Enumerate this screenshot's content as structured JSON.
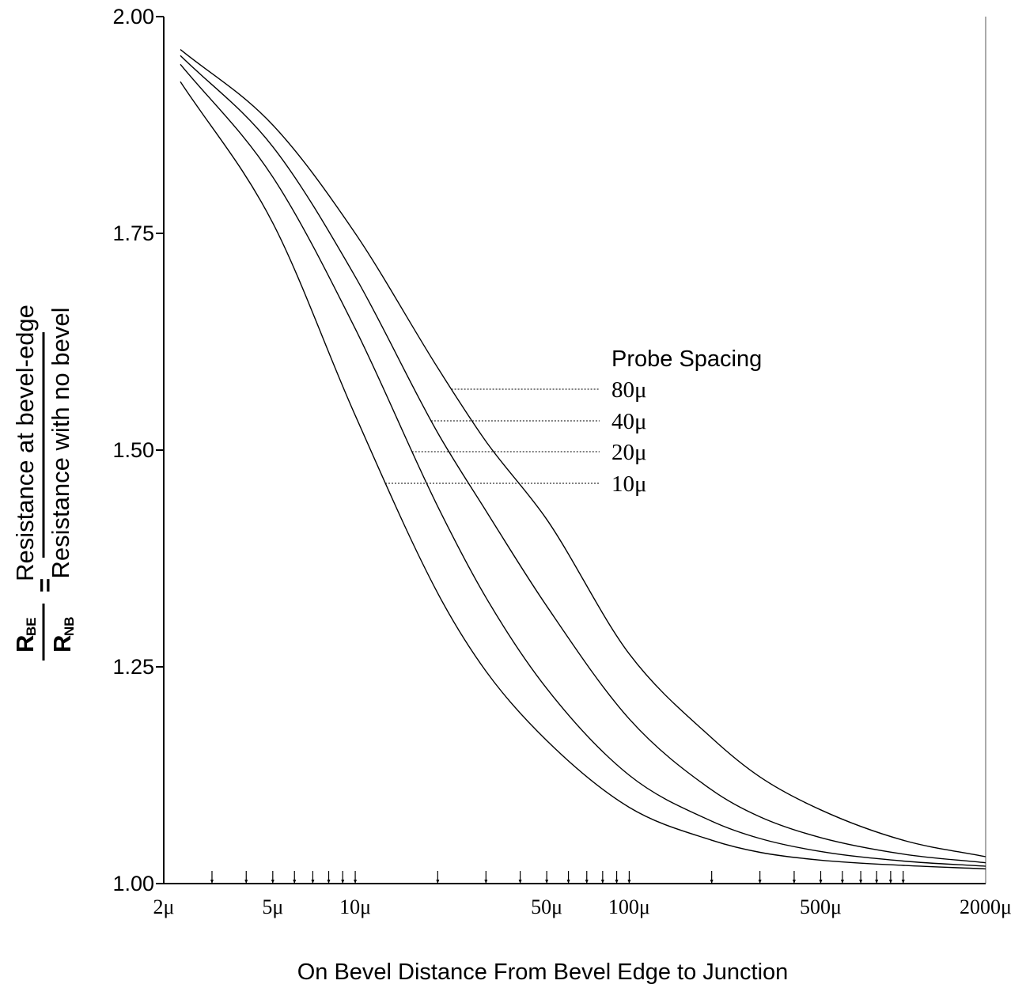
{
  "chart_data": {
    "type": "line",
    "title": "",
    "xlabel": "On Bevel Distance From Bevel Edge to Junction",
    "ylabel": {
      "numerator": "Resistance at bevel-edge",
      "denominator": "Resistance with no bevel",
      "symbol_numerator": "R",
      "symbol_numerator_sub": "BE",
      "symbol_denominator": "R",
      "symbol_denominator_sub": "NB",
      "equals": "="
    },
    "x_scale": "log",
    "x_unit": "μ",
    "xlim": [
      2,
      2000
    ],
    "ylim": [
      1.0,
      2.0
    ],
    "y_ticks": [
      "1.00",
      "1.25",
      "1.50",
      "1.75",
      "2.00"
    ],
    "x_tick_labels": [
      {
        "value": 2,
        "label": "2μ"
      },
      {
        "value": 5,
        "label": "5μ"
      },
      {
        "value": 10,
        "label": "10μ"
      },
      {
        "value": 50,
        "label": "50μ"
      },
      {
        "value": 100,
        "label": "100μ"
      },
      {
        "value": 500,
        "label": "500μ"
      },
      {
        "value": 2000,
        "label": "2000μ"
      }
    ],
    "x_minor_ticks": [
      3,
      4,
      5,
      6,
      7,
      8,
      9,
      10,
      20,
      30,
      40,
      50,
      60,
      70,
      80,
      90,
      100,
      200,
      300,
      400,
      500,
      600,
      700,
      800,
      900,
      1000
    ],
    "grid": false,
    "legend": {
      "title": "Probe Spacing",
      "placement": "center-right",
      "entries": [
        "80μ",
        "40μ",
        "20μ",
        "10μ"
      ]
    },
    "series": [
      {
        "name": "80μ",
        "x": [
          2.3,
          5,
          10,
          20,
          30,
          50,
          100,
          200,
          300,
          500,
          1000,
          2000
        ],
        "y": [
          1.962,
          1.875,
          1.75,
          1.595,
          1.51,
          1.42,
          1.265,
          1.168,
          1.123,
          1.085,
          1.05,
          1.031
        ]
      },
      {
        "name": "40μ",
        "x": [
          2.3,
          5,
          10,
          20,
          30,
          50,
          100,
          200,
          300,
          500,
          1000,
          2000
        ],
        "y": [
          1.955,
          1.85,
          1.7,
          1.52,
          1.43,
          1.32,
          1.19,
          1.108,
          1.077,
          1.053,
          1.034,
          1.024
        ]
      },
      {
        "name": "20μ",
        "x": [
          2.3,
          5,
          10,
          20,
          30,
          50,
          100,
          200,
          300,
          500,
          1000,
          2000
        ],
        "y": [
          1.945,
          1.815,
          1.64,
          1.435,
          1.33,
          1.225,
          1.125,
          1.072,
          1.052,
          1.037,
          1.026,
          1.02
        ]
      },
      {
        "name": "10μ",
        "x": [
          2.3,
          5,
          10,
          20,
          30,
          50,
          100,
          200,
          300,
          500,
          1000,
          2000
        ],
        "y": [
          1.925,
          1.762,
          1.54,
          1.335,
          1.245,
          1.165,
          1.088,
          1.05,
          1.036,
          1.027,
          1.021,
          1.017
        ]
      }
    ]
  }
}
